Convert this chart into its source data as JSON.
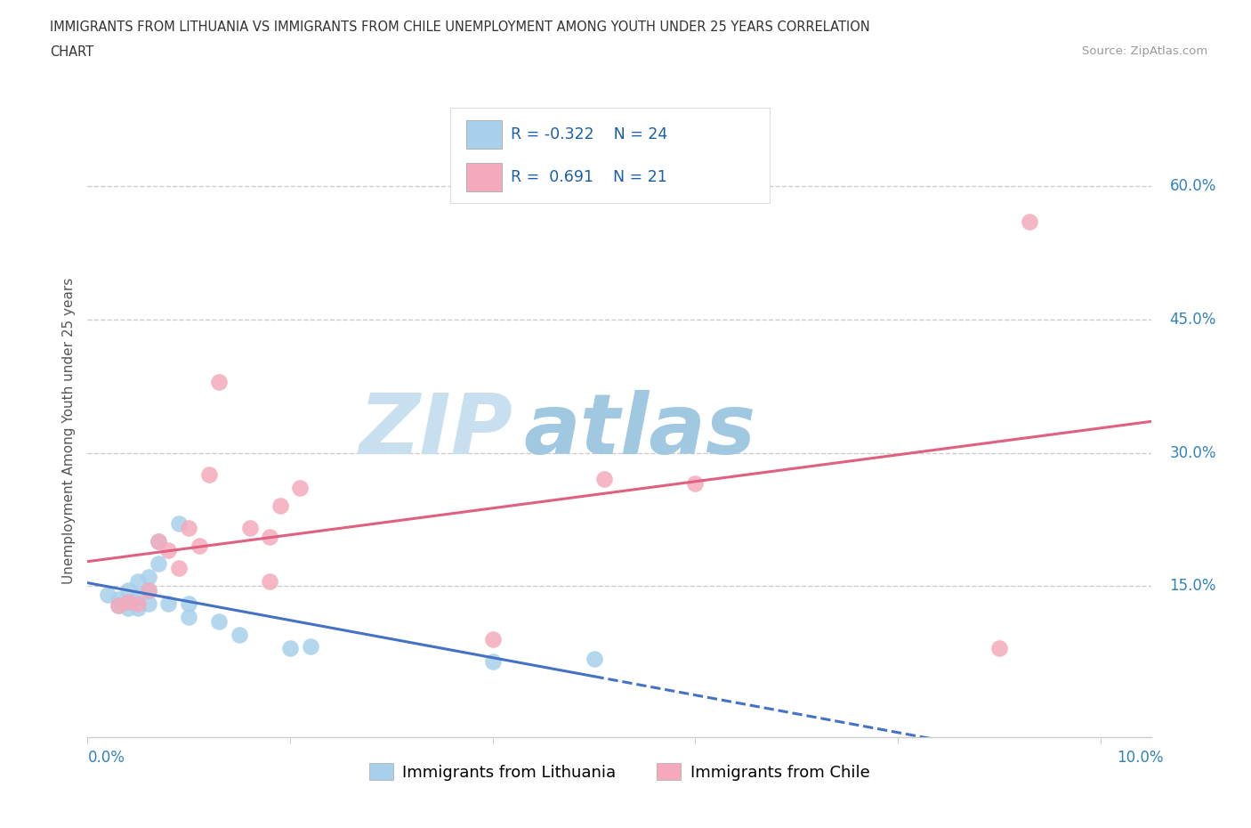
{
  "title_line1": "IMMIGRANTS FROM LITHUANIA VS IMMIGRANTS FROM CHILE UNEMPLOYMENT AMONG YOUTH UNDER 25 YEARS CORRELATION",
  "title_line2": "CHART",
  "source": "Source: ZipAtlas.com",
  "ylabel": "Unemployment Among Youth under 25 years",
  "legend_label1": "Immigrants from Lithuania",
  "legend_label2": "Immigrants from Chile",
  "R1": -0.322,
  "N1": 24,
  "R2": 0.691,
  "N2": 21,
  "color_lithuania": "#a8d0ea",
  "color_chile": "#f4aabc",
  "color_line_lithuania": "#4472c4",
  "color_line_chile": "#e06080",
  "ytick_labels": [
    "15.0%",
    "30.0%",
    "45.0%",
    "60.0%"
  ],
  "ytick_values": [
    0.15,
    0.3,
    0.45,
    0.6
  ],
  "xtick_positions": [
    0.0,
    0.02,
    0.04,
    0.06,
    0.08,
    0.1
  ],
  "xlim": [
    0.0,
    0.105
  ],
  "ylim": [
    -0.02,
    0.67
  ],
  "lithuania_x": [
    0.002,
    0.003,
    0.003,
    0.004,
    0.004,
    0.004,
    0.005,
    0.005,
    0.005,
    0.006,
    0.006,
    0.006,
    0.007,
    0.007,
    0.008,
    0.009,
    0.01,
    0.01,
    0.013,
    0.015,
    0.02,
    0.022,
    0.04,
    0.05
  ],
  "lithuania_y": [
    0.14,
    0.135,
    0.128,
    0.132,
    0.145,
    0.125,
    0.138,
    0.155,
    0.125,
    0.145,
    0.16,
    0.13,
    0.175,
    0.2,
    0.13,
    0.22,
    0.115,
    0.13,
    0.11,
    0.095,
    0.08,
    0.082,
    0.065,
    0.068
  ],
  "chile_x": [
    0.003,
    0.004,
    0.005,
    0.006,
    0.007,
    0.008,
    0.009,
    0.01,
    0.011,
    0.012,
    0.013,
    0.016,
    0.018,
    0.018,
    0.019,
    0.021,
    0.04,
    0.051,
    0.06,
    0.09,
    0.093
  ],
  "chile_y": [
    0.128,
    0.132,
    0.13,
    0.145,
    0.2,
    0.19,
    0.17,
    0.215,
    0.195,
    0.275,
    0.38,
    0.215,
    0.155,
    0.205,
    0.24,
    0.26,
    0.09,
    0.27,
    0.265,
    0.08,
    0.56
  ],
  "watermark_zip_color": "#c8dff0",
  "watermark_atlas_color": "#a0c8e0",
  "background_color": "#ffffff",
  "title_color": "#333333",
  "source_color": "#999999",
  "ylabel_color": "#555555",
  "ytick_color": "#3182bd",
  "xlabel_color": "#3182bd",
  "grid_color": "#cccccc",
  "spine_color": "#cccccc"
}
